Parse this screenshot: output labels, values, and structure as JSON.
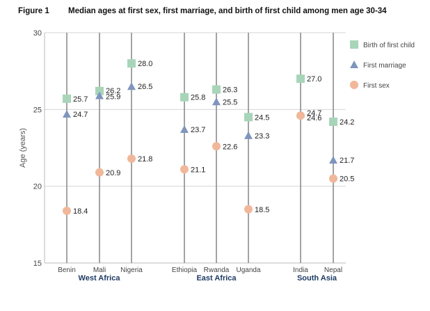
{
  "figure_label": "Figure 1",
  "chart_data": {
    "type": "scatter",
    "title": "Median ages at first sex, first marriage, and birth of first child among men age 30-34",
    "ylabel": "Age (years)",
    "ylim": [
      15,
      30
    ],
    "yticks": [
      15,
      20,
      25,
      30
    ],
    "grid": true,
    "legend_position": "right",
    "categories": [
      "Benin",
      "Mali",
      "Nigeria",
      "Ethiopia",
      "Rwanda",
      "Uganda",
      "India",
      "Nepal"
    ],
    "groups": [
      {
        "label": "West Africa",
        "members": [
          "Benin",
          "Mali",
          "Nigeria"
        ]
      },
      {
        "label": "East Africa",
        "members": [
          "Ethiopia",
          "Rwanda",
          "Uganda"
        ]
      },
      {
        "label": "South Asia",
        "members": [
          "India",
          "Nepal"
        ]
      }
    ],
    "series": [
      {
        "name": "Birth of first child",
        "marker": "square",
        "color": "#a8d5b9",
        "values": [
          25.7,
          26.2,
          28.0,
          25.8,
          26.3,
          24.5,
          27.0,
          24.2
        ]
      },
      {
        "name": "First marriage",
        "marker": "triangle",
        "color": "#7f95bd",
        "values": [
          24.7,
          25.9,
          26.5,
          23.7,
          25.5,
          23.3,
          24.7,
          21.7
        ]
      },
      {
        "name": "First sex",
        "marker": "circle",
        "color": "#f1b79a",
        "values": [
          18.4,
          20.9,
          21.8,
          21.1,
          22.6,
          18.5,
          24.6,
          20.5
        ]
      }
    ]
  }
}
